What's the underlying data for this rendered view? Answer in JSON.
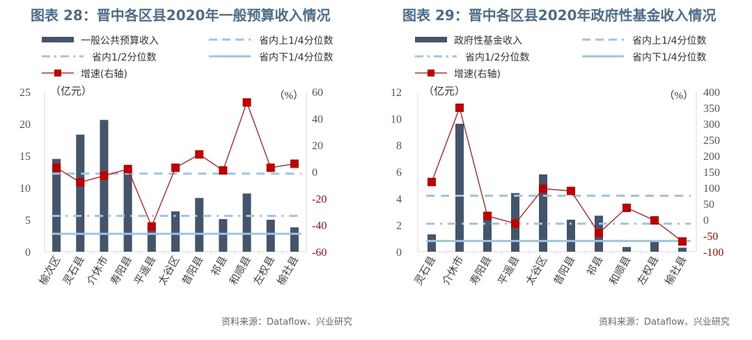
{
  "chart_data": [
    {
      "type": "bar+line",
      "title": "图表 28：晋中各区县2020年一般预算收入情况",
      "source": "资料来源：Dataflow、兴业研究",
      "left_unit": "（亿元）",
      "right_unit": "（%）",
      "ylim": [
        0,
        25
      ],
      "yticks": [
        0,
        5,
        10,
        15,
        20,
        25
      ],
      "y2lim": [
        -60,
        60
      ],
      "y2ticks": [
        -60,
        -40,
        -20,
        0,
        20,
        40,
        60
      ],
      "categories": [
        "榆次区",
        "灵石县",
        "介休市",
        "寿阳县",
        "平遥县",
        "太谷区",
        "昔阳县",
        "祁县",
        "和顺县",
        "左权县",
        "榆社县"
      ],
      "legend": {
        "bar": "一般公共预算收入",
        "upper": "省内上1/4分位数",
        "median": "省内1/2分位数",
        "lower": "省内下1/4分位数",
        "growth": "增速(右轴)"
      },
      "bar_values": [
        14.5,
        18.3,
        20.6,
        12.8,
        3.8,
        6.3,
        8.4,
        5.1,
        9.1,
        5.0,
        3.8
      ],
      "growth_values": [
        3,
        -8,
        -3,
        2,
        -41,
        3,
        13,
        1,
        52,
        3,
        6
      ],
      "upper_quartile": 12.2,
      "median": 5.6,
      "lower_quartile": 2.8
    },
    {
      "type": "bar+line",
      "title": "图表 29：晋中各区县2020年政府性基金收入情况",
      "source": "资料来源：Dataflow、兴业研究",
      "left_unit": "（亿元）",
      "right_unit": "（%）",
      "ylim": [
        0,
        12
      ],
      "yticks": [
        0,
        2,
        4,
        6,
        8,
        10,
        12
      ],
      "y2lim": [
        -100,
        400
      ],
      "y2ticks": [
        -100,
        -50,
        0,
        50,
        100,
        150,
        200,
        250,
        300,
        350,
        400
      ],
      "categories": [
        "灵石县",
        "介休市",
        "寿阳县",
        "平遥县",
        "太谷区",
        "昔阳县",
        "祁县",
        "和顺县",
        "左权县",
        "榆社县"
      ],
      "legend": {
        "bar": "政府性基金收入",
        "upper": "省内上1/4分位数",
        "median": "省内1/2分位数",
        "lower": "省内下1/4分位数",
        "growth": "增速(右轴)"
      },
      "bar_values": [
        1.3,
        9.6,
        2.8,
        4.4,
        5.8,
        2.4,
        2.7,
        0.35,
        0.8,
        0.3
      ],
      "growth_values": [
        118,
        350,
        12,
        -12,
        97,
        90,
        -42,
        37,
        -2,
        -68
      ],
      "upper_quartile": 4.2,
      "median": 2.1,
      "lower_quartile": 0.8
    }
  ],
  "colors": {
    "bar": "#44546a",
    "line": "#c00000",
    "quartile": "#9dc3e6",
    "title": "#4a6d8c"
  }
}
